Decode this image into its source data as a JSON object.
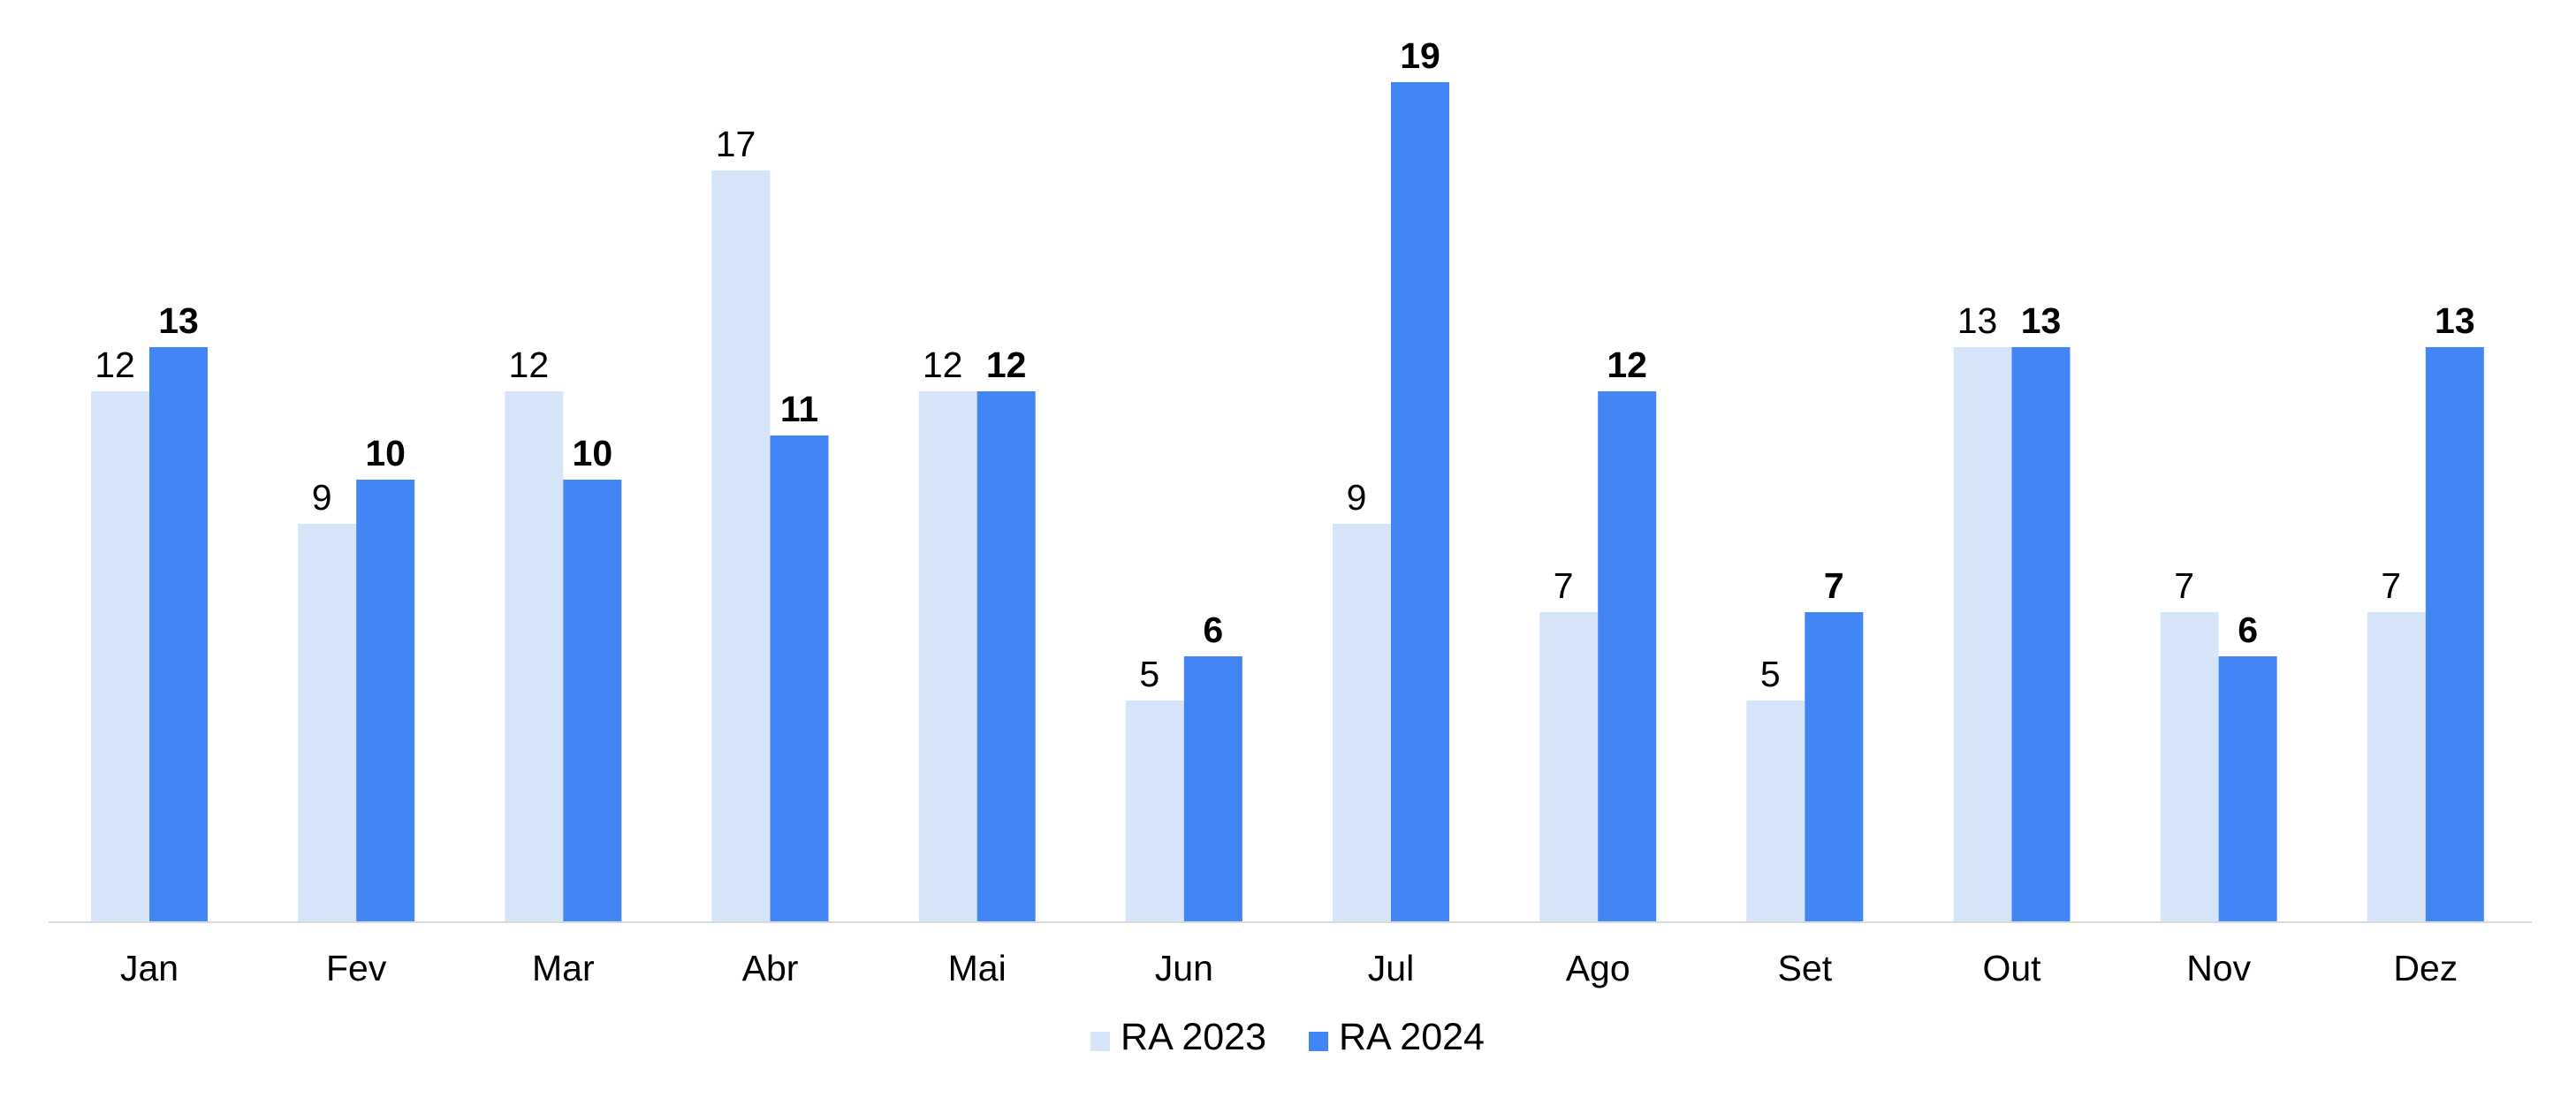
{
  "chart_data": {
    "type": "bar",
    "title": "",
    "xlabel": "",
    "ylabel": "",
    "ylim": [
      0,
      20
    ],
    "grid": false,
    "legend_position": "bottom-center",
    "categories": [
      "Jan",
      "Fev",
      "Mar",
      "Abr",
      "Mai",
      "Jun",
      "Jul",
      "Ago",
      "Set",
      "Out",
      "Nov",
      "Dez"
    ],
    "series": [
      {
        "name": "RA 2023",
        "color": "#D6E5FA",
        "label_bold": false,
        "values": [
          12,
          9,
          12,
          17,
          12,
          5,
          9,
          7,
          5,
          13,
          7,
          7
        ]
      },
      {
        "name": "RA 2024",
        "color": "#4285F4",
        "label_bold": true,
        "values": [
          13,
          10,
          10,
          11,
          12,
          6,
          19,
          12,
          7,
          13,
          6,
          13
        ]
      }
    ],
    "axis_color": "#D9D9D9"
  }
}
